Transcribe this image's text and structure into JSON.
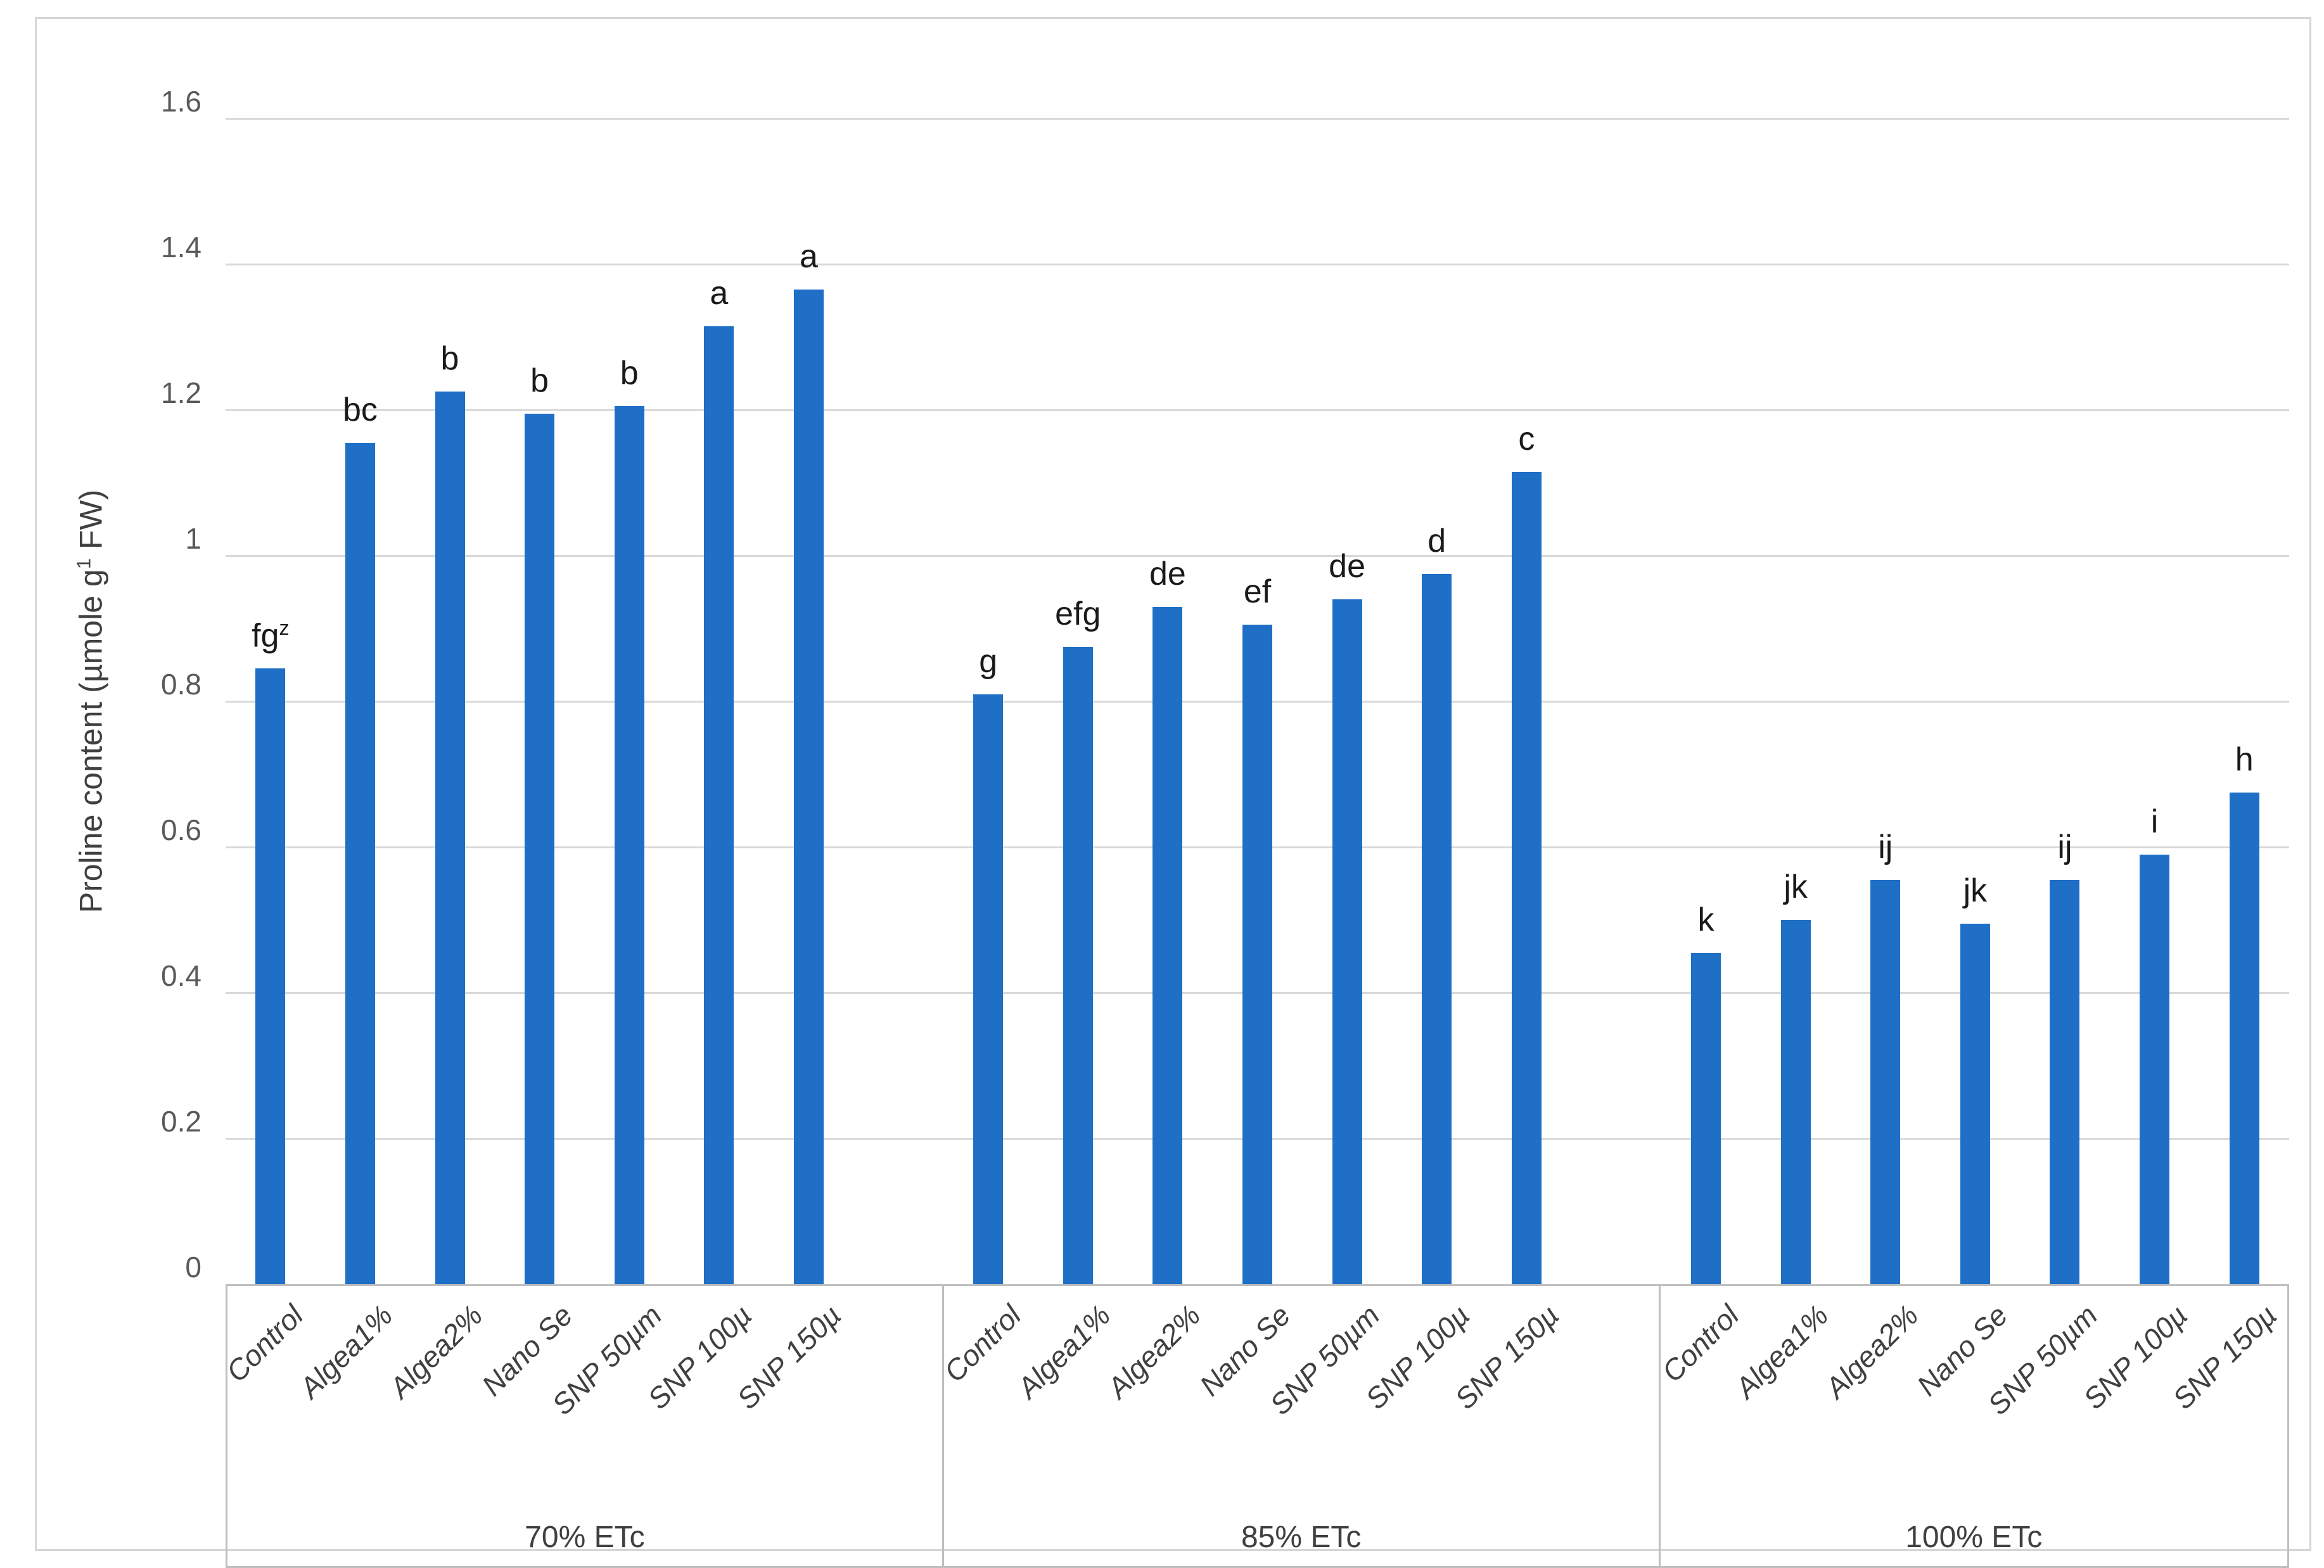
{
  "chart_data": {
    "type": "bar",
    "title": "",
    "ylabel_prefix": "Proline content (µmole g",
    "ylabel_sup": "1",
    "ylabel_suffix": " FW)",
    "ylabel_full": "Proline content (µmole g1 FW)",
    "xlabel": "",
    "ylim": [
      0,
      1.6
    ],
    "grid": true,
    "legend_position": "none",
    "bar_color": "#1f6fc6",
    "gridline_color": "#d9d9d9",
    "axis_text_color": "#595959",
    "yticks": [
      {
        "v": 0,
        "label": "0"
      },
      {
        "v": 0.2,
        "label": "0.2"
      },
      {
        "v": 0.4,
        "label": "0.4"
      },
      {
        "v": 0.6,
        "label": "0.6"
      },
      {
        "v": 0.8,
        "label": "0.8"
      },
      {
        "v": 1.0,
        "label": "1"
      },
      {
        "v": 1.2,
        "label": "1.2"
      },
      {
        "v": 1.4,
        "label": "1.4"
      },
      {
        "v": 1.6,
        "label": "1.6"
      }
    ],
    "categories": [
      "Control",
      "Algea1%",
      "Algea2%",
      "Nano Se",
      "SNP 50µm",
      "SNP 100µ",
      "SNP 150µ"
    ],
    "groups": [
      {
        "label": "70% ETc",
        "values": [
          0.845,
          1.155,
          1.225,
          1.195,
          1.205,
          1.315,
          1.365
        ],
        "letters": [
          "fg",
          "bc",
          "b",
          "b",
          "b",
          "a",
          "a"
        ],
        "letter_sups": [
          "z",
          "",
          "",
          "",
          "",
          "",
          ""
        ]
      },
      {
        "label": "85% ETc",
        "values": [
          0.81,
          0.875,
          0.93,
          0.905,
          0.94,
          0.975,
          1.115
        ],
        "letters": [
          "g",
          "efg",
          "de",
          "ef",
          "de",
          "d",
          "c"
        ],
        "letter_sups": [
          "",
          "",
          "",
          "",
          "",
          "",
          ""
        ]
      },
      {
        "label": "100% ETc",
        "values": [
          0.455,
          0.5,
          0.555,
          0.495,
          0.555,
          0.59,
          0.675
        ],
        "letters": [
          "k",
          "jk",
          "ij",
          "jk",
          "ij",
          "i",
          "h"
        ],
        "letter_sups": [
          "",
          "",
          "",
          "",
          "",
          "",
          ""
        ]
      }
    ]
  }
}
